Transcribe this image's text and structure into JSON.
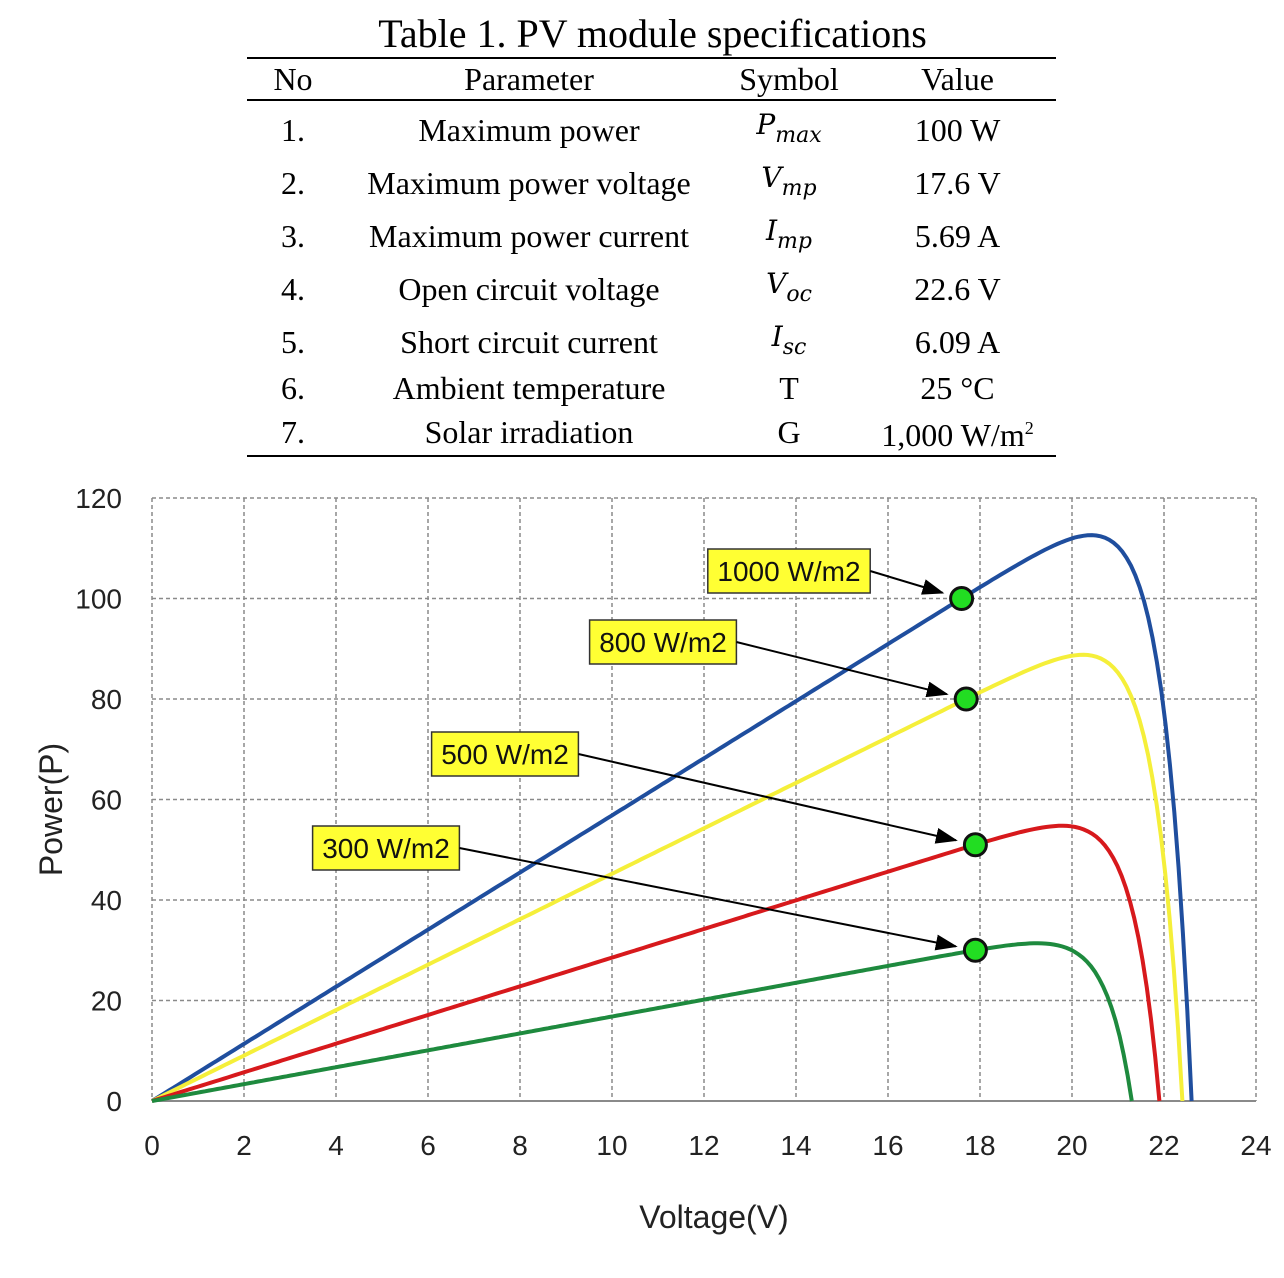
{
  "table": {
    "caption": "Table 1. PV module specifications",
    "headers": {
      "no": "No",
      "parameter": "Parameter",
      "symbol": "Symbol",
      "value": "Value"
    },
    "rows": [
      {
        "no": "1.",
        "parameter": "Maximum power",
        "symbol_main": "P",
        "symbol_sub": "max",
        "value": "100 W"
      },
      {
        "no": "2.",
        "parameter": "Maximum power voltage",
        "symbol_main": "V",
        "symbol_sub": "mp",
        "value": "17.6 V"
      },
      {
        "no": "3.",
        "parameter": "Maximum power current",
        "symbol_main": "I",
        "symbol_sub": "mp",
        "value": "5.69 A"
      },
      {
        "no": "4.",
        "parameter": "Open circuit voltage",
        "symbol_main": "V",
        "symbol_sub": "oc",
        "value": "22.6 V"
      },
      {
        "no": "5.",
        "parameter": "Short circuit current",
        "symbol_main": "I",
        "symbol_sub": "sc",
        "value": "6.09 A"
      },
      {
        "no": "6.",
        "parameter": "Ambient temperature",
        "symbol_main": "T",
        "symbol_sub": "",
        "value": "25 °C"
      },
      {
        "no": "7.",
        "parameter": "Solar irradiation",
        "symbol_main": "G",
        "symbol_sub": "",
        "value": "1,000 W/m",
        "value_sup": "2"
      }
    ]
  },
  "chart_data": {
    "type": "line",
    "xlabel": "Voltage(V)",
    "ylabel": "Power(P)",
    "xlim": [
      0,
      24
    ],
    "ylim": [
      0,
      120
    ],
    "xticks": [
      0,
      2,
      4,
      6,
      8,
      10,
      12,
      14,
      16,
      18,
      20,
      22,
      24
    ],
    "yticks": [
      0,
      20,
      40,
      60,
      80,
      100,
      120
    ],
    "grid": true,
    "series": [
      {
        "name": "1000 W/m2",
        "color": "#1f4e9e",
        "voc": 22.6,
        "mpp": {
          "x": 17.6,
          "y": 100
        }
      },
      {
        "name": "800 W/m2",
        "color": "#f5ef3a",
        "voc": 22.4,
        "mpp": {
          "x": 17.7,
          "y": 80
        }
      },
      {
        "name": "500 W/m2",
        "color": "#d7191c",
        "voc": 21.9,
        "mpp": {
          "x": 17.9,
          "y": 51
        }
      },
      {
        "name": "300 W/m2",
        "color": "#1e8a3e",
        "voc": 21.3,
        "mpp": {
          "x": 17.9,
          "y": 30
        }
      }
    ],
    "marker_color": "#22dd22",
    "label_color": "#ffff33"
  }
}
